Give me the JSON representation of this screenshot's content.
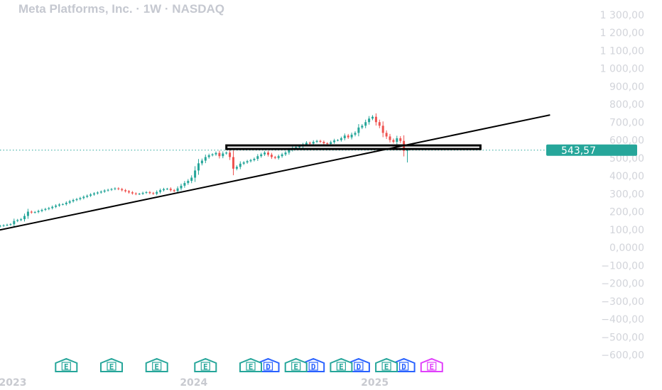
{
  "header": {
    "title": "Meta Platforms, Inc. · 1W · NASDAQ"
  },
  "colors": {
    "up": "#26a69a",
    "down": "#ef5350",
    "drawing": "#000000",
    "price_line": "#26a69a",
    "earnings_past": "#26a69a",
    "earnings_future": "#e040fb",
    "dividend": "#2962ff",
    "axis_text": "#d2d4da"
  },
  "chart_data": {
    "type": "candlestick",
    "title": "Meta Platforms, Inc. · 1W · NASDAQ",
    "interval": "1W",
    "exchange": "NASDAQ",
    "ylim": [
      -600,
      1300
    ],
    "y_ticks": [
      "1 300,00",
      "1 200,00",
      "1 100,00",
      "1 000,00",
      "900,00",
      "800,00",
      "700,00",
      "600,00",
      "500,00",
      "400,00",
      "300,00",
      "200,00",
      "100,00",
      "0,0000",
      "−100,00",
      "−200,00",
      "−300,00",
      "−400,00",
      "−500,00",
      "−600,00"
    ],
    "y_tick_values": [
      1300,
      1200,
      1100,
      1000,
      900,
      800,
      700,
      600,
      500,
      400,
      300,
      200,
      100,
      0,
      -100,
      -200,
      -300,
      -400,
      -500,
      -600
    ],
    "x_ticks": [
      {
        "label": "2023",
        "week": 0
      },
      {
        "label": "2024",
        "week": 52
      },
      {
        "label": "2025",
        "week": 104
      }
    ],
    "last_price": 543.57,
    "last_price_label": "543,57",
    "grid": false,
    "drawings": {
      "trendline": {
        "start": {
          "week": -4,
          "price": 90
        },
        "end": {
          "week": 156,
          "price": 740
        }
      },
      "horizontal_box": {
        "start_week": 63,
        "end_week": 136,
        "price_top": 570,
        "price_bottom": 550
      }
    },
    "earnings_markers": [
      {
        "label": "E",
        "week": 17,
        "status": "past"
      },
      {
        "label": "E",
        "week": 30,
        "status": "past"
      },
      {
        "label": "E",
        "week": 43,
        "status": "past"
      },
      {
        "label": "E",
        "week": 57,
        "status": "past"
      },
      {
        "label": "E",
        "week": 70,
        "status": "past"
      },
      {
        "label": "E",
        "week": 83,
        "status": "past"
      },
      {
        "label": "E",
        "week": 96,
        "status": "past"
      },
      {
        "label": "E",
        "week": 109,
        "status": "past"
      },
      {
        "label": "E",
        "week": 122,
        "status": "future"
      }
    ],
    "dividend_markers": [
      {
        "label": "D",
        "week": 75
      },
      {
        "label": "D",
        "week": 88
      },
      {
        "label": "D",
        "week": 101
      },
      {
        "label": "D",
        "week": 114
      }
    ],
    "candles_start_week": -4,
    "closes": [
      115,
      118,
      121,
      124,
      127,
      130,
      148,
      153,
      158,
      176,
      200,
      195,
      198,
      204,
      210,
      215,
      220,
      227,
      234,
      240,
      242,
      250,
      258,
      265,
      270,
      276,
      283,
      289,
      296,
      302,
      307,
      312,
      318,
      322,
      326,
      330,
      326,
      320,
      314,
      308,
      302,
      298,
      300,
      305,
      309,
      304,
      300,
      310,
      320,
      326,
      328,
      320,
      315,
      330,
      345,
      360,
      372,
      390,
      430,
      470,
      485,
      505,
      515,
      520,
      528,
      510,
      525,
      530,
      505,
      440,
      450,
      468,
      475,
      482,
      488,
      495,
      510,
      520,
      530,
      518,
      505,
      500,
      510,
      520,
      530,
      545,
      555,
      560,
      565,
      575,
      585,
      580,
      590,
      595,
      590,
      582,
      578,
      588,
      598,
      600,
      610,
      625,
      615,
      630,
      640,
      670,
      680,
      700,
      720,
      730,
      700,
      680,
      640,
      620,
      600,
      590,
      610,
      595,
      540,
      543.57
    ]
  }
}
